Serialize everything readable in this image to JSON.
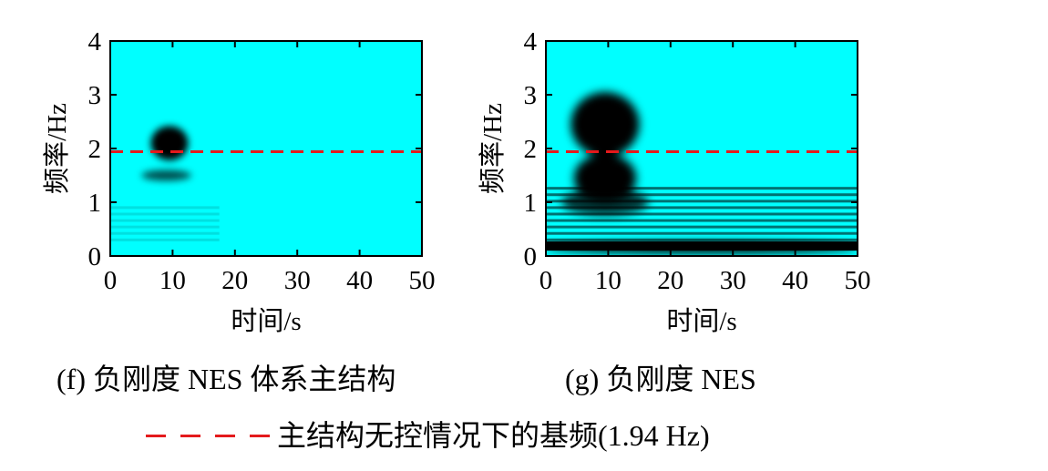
{
  "colors": {
    "background": "#00ffff",
    "dark": "#000000",
    "reference_line": "#e41a1c"
  },
  "captions": {
    "f": "(f)  负刚度 NES 体系主结构",
    "g": "(g)  负刚度 NES"
  },
  "legend": {
    "label": "主结构无控情况下的基频(1.94 Hz)"
  },
  "chart_data": [
    {
      "type": "heatmap",
      "panel": "f",
      "xlabel": "时间/s",
      "ylabel": "频率/Hz",
      "xlim": [
        0,
        50
      ],
      "ylim": [
        0,
        4
      ],
      "xticks": [
        0,
        10,
        20,
        30,
        40,
        50
      ],
      "yticks": [
        0,
        1,
        2,
        3,
        4
      ],
      "reference_line": {
        "y": 1.94,
        "style": "dashed"
      },
      "dark_regions": [
        {
          "t_center": 9.5,
          "f_center": 2.1,
          "t_radius": 3.0,
          "f_radius": 0.32,
          "intensity": 1.0
        },
        {
          "t_center": 9.0,
          "f_center": 1.5,
          "t_radius": 4.0,
          "f_radius": 0.1,
          "intensity": 0.7
        }
      ]
    },
    {
      "type": "heatmap",
      "panel": "g",
      "xlabel": "时间/s",
      "ylabel": "频率/Hz",
      "xlim": [
        0,
        50
      ],
      "ylim": [
        0,
        4
      ],
      "xticks": [
        0,
        10,
        20,
        30,
        40,
        50
      ],
      "yticks": [
        0,
        1,
        2,
        3,
        4
      ],
      "reference_line": {
        "y": 1.94,
        "style": "dashed"
      },
      "dark_regions": [
        {
          "t_center": 9.5,
          "f_center": 2.45,
          "t_radius": 5.5,
          "f_radius": 0.6,
          "intensity": 1.0
        },
        {
          "t_center": 9.5,
          "f_center": 1.45,
          "t_radius": 5.0,
          "f_radius": 0.45,
          "intensity": 1.0
        },
        {
          "t_center": 9.5,
          "f_center": 1.0,
          "t_radius": 7.0,
          "f_radius": 0.25,
          "intensity": 0.8
        },
        {
          "t_center": 25.0,
          "f_center": 0.15,
          "t_radius": 25.0,
          "f_radius": 0.1,
          "intensity": 1.0
        }
      ]
    }
  ]
}
